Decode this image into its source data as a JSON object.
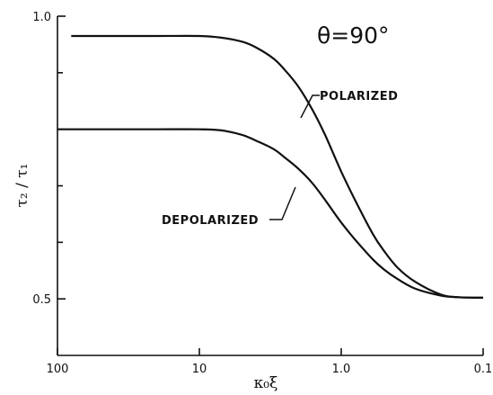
{
  "chart_data": {
    "type": "line",
    "x_scale": "log",
    "x_reversed": true,
    "xlim": [
      100,
      0.1
    ],
    "ylim": [
      0.4,
      1.0
    ],
    "xlabel": "κ₀ξ",
    "ylabel": "τ₂ / τ₁",
    "x_ticks": [
      {
        "value": 100,
        "label": "100"
      },
      {
        "value": 10,
        "label": "10"
      },
      {
        "value": 1,
        "label": "1.0"
      },
      {
        "value": 0.1,
        "label": "0.1"
      }
    ],
    "y_ticks": [
      {
        "value": 1.0,
        "label": "1.0"
      },
      {
        "value": 0.5,
        "label": "0.5"
      }
    ],
    "y_minor_ticks": [
      0.9,
      0.8,
      0.7,
      0.6
    ],
    "annotation": "θ=90°",
    "series": [
      {
        "name": "POLARIZED",
        "x": [
          80,
          40,
          20,
          10,
          7,
          5,
          4,
          3,
          2.5,
          2,
          1.6,
          1.3,
          1.0,
          0.8,
          0.6,
          0.5,
          0.4,
          0.3,
          0.2,
          0.15,
          0.1
        ],
        "y": [
          0.965,
          0.965,
          0.965,
          0.965,
          0.962,
          0.955,
          0.945,
          0.925,
          0.905,
          0.875,
          0.835,
          0.79,
          0.725,
          0.675,
          0.615,
          0.585,
          0.555,
          0.53,
          0.508,
          0.503,
          0.502
        ]
      },
      {
        "name": "DEPOLARIZED",
        "x": [
          100,
          40,
          20,
          10,
          7,
          5,
          4,
          3,
          2.5,
          2,
          1.6,
          1.3,
          1.0,
          0.8,
          0.6,
          0.5,
          0.4,
          0.3,
          0.2,
          0.15,
          0.1
        ],
        "y": [
          0.8,
          0.8,
          0.8,
          0.8,
          0.798,
          0.79,
          0.78,
          0.765,
          0.75,
          0.73,
          0.705,
          0.675,
          0.635,
          0.605,
          0.57,
          0.552,
          0.535,
          0.518,
          0.506,
          0.503,
          0.502
        ]
      }
    ]
  }
}
